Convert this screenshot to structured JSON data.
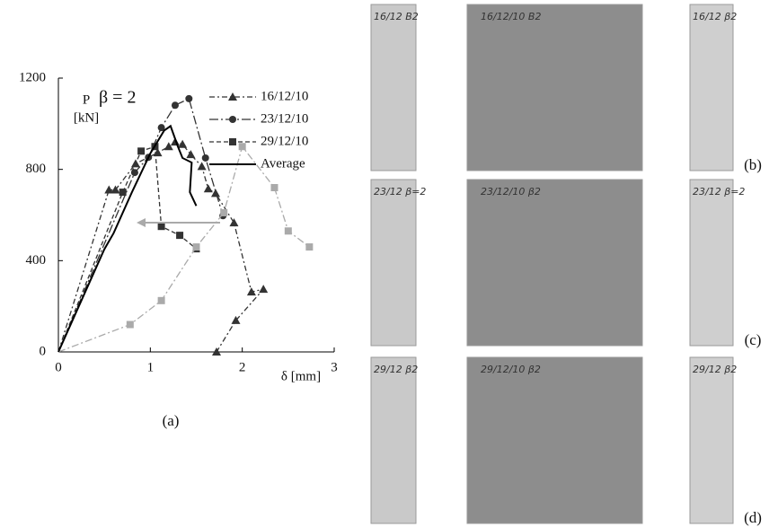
{
  "chart_data": {
    "type": "line",
    "annotation": "β = 2",
    "y_label": [
      "P",
      "[kN]"
    ],
    "x_label": "δ [mm]",
    "caption": "(a)",
    "xlim": [
      0,
      3
    ],
    "xticks": [
      0,
      1,
      2,
      3
    ],
    "ylim": [
      0,
      1200
    ],
    "yticks": [
      0,
      400,
      800,
      1200
    ],
    "grid": false,
    "legend": "top-right",
    "series": [
      {
        "name": "16/12/10",
        "color": "#333333",
        "marker": "triangle",
        "dash": "6 3 2 3",
        "x": [
          0,
          0.55,
          0.62,
          0.84,
          1.08,
          1.2,
          1.27,
          1.35,
          1.44,
          1.56,
          1.63,
          1.71,
          1.91,
          2.1,
          2.23,
          1.93,
          1.72
        ],
        "values": [
          0,
          710,
          710,
          825,
          873,
          900,
          920,
          910,
          865,
          813,
          715,
          695,
          566,
          263,
          275,
          138,
          0
        ]
      },
      {
        "name": "23/12/10",
        "color": "#333333",
        "marker": "circle",
        "dash": "10 3 2 3",
        "x": [
          0,
          0.83,
          0.98,
          1.12,
          1.27,
          1.42,
          1.6,
          1.79
        ],
        "values": [
          0,
          786,
          853,
          983,
          1081,
          1110,
          850,
          597
        ]
      },
      {
        "name": "29/12/10",
        "color": "#333333",
        "marker": "square",
        "dash": "5 3",
        "x": [
          0,
          0.7,
          0.9,
          1.05,
          1.12,
          1.32,
          1.5
        ],
        "values": [
          0,
          700,
          880,
          900,
          550,
          511,
          452
        ]
      },
      {
        "name": null,
        "color": "#aaaaaa",
        "marker": "square",
        "dash": "8 3 2 3",
        "x": [
          0,
          0.78,
          1.12,
          1.5,
          1.8,
          2.0,
          2.35,
          2.5,
          2.73
        ],
        "values": [
          0,
          120,
          225,
          460,
          610,
          900,
          720,
          530,
          460
        ]
      },
      {
        "name": "Average",
        "color": "#000000",
        "marker": null,
        "dash": null,
        "x": [
          0,
          0.5,
          0.6,
          0.8,
          1.0,
          1.15,
          1.22,
          1.3,
          1.35,
          1.45,
          1.43,
          1.5
        ],
        "values": [
          0,
          450,
          520,
          700,
          870,
          970,
          990,
          900,
          850,
          830,
          700,
          640
        ]
      }
    ]
  },
  "photos": {
    "rows": [
      {
        "caption": "(b)",
        "labels": [
          "16/12 B2",
          "16/12/10 B2",
          "16/12 β2"
        ]
      },
      {
        "caption": "(c)",
        "labels": [
          "23/12 β=2",
          "23/12/10 β2",
          "23/12 β=2"
        ]
      },
      {
        "caption": "(d)",
        "labels": [
          "29/12 β2",
          "29/12/10 β2",
          "29/12 β2"
        ]
      }
    ]
  }
}
